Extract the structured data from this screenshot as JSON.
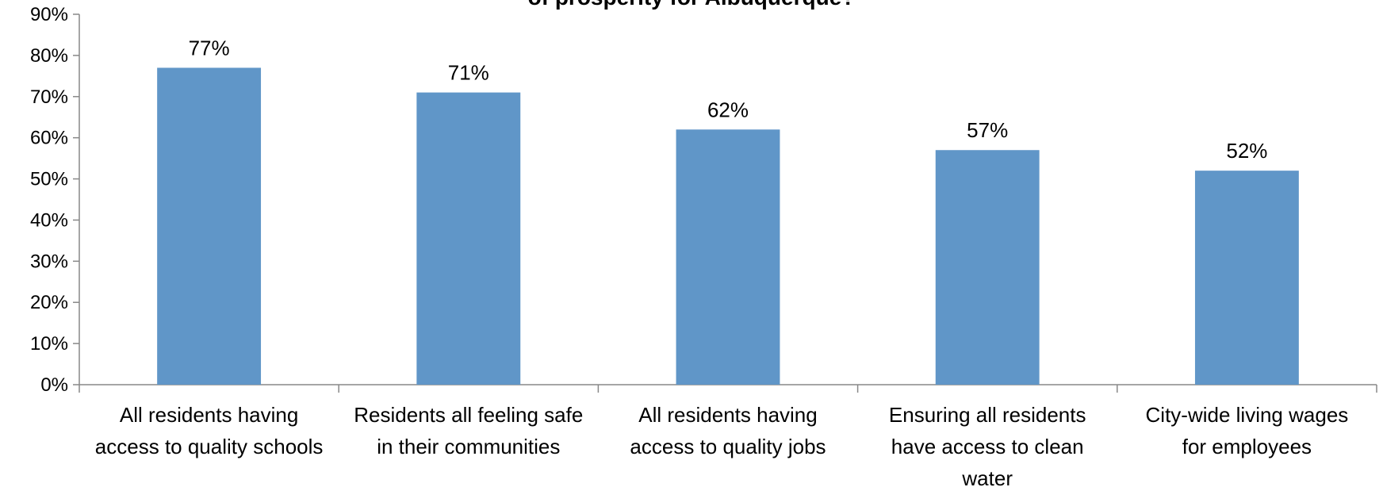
{
  "chart_data": {
    "type": "bar",
    "title": "of prosperity for Albuquerque?",
    "categories": [
      [
        "All residents having",
        "access to quality schools"
      ],
      [
        "Residents all feeling safe",
        "in their communities"
      ],
      [
        "All residents having",
        "access to quality jobs"
      ],
      [
        "Ensuring all residents",
        "have access to clean",
        "water"
      ],
      [
        "City-wide living wages",
        "for employees"
      ]
    ],
    "values": [
      77,
      71,
      62,
      57,
      52
    ],
    "value_labels": [
      "77%",
      "71%",
      "62%",
      "57%",
      "52%"
    ],
    "yticks": [
      "0%",
      "10%",
      "20%",
      "30%",
      "40%",
      "50%",
      "60%",
      "70%",
      "80%",
      "90%"
    ],
    "ylim": [
      0,
      90
    ],
    "xlabel": "",
    "ylabel": "",
    "grid": false,
    "legend": "none",
    "bar_color": "#6096c8",
    "axis_color": "#888888"
  }
}
